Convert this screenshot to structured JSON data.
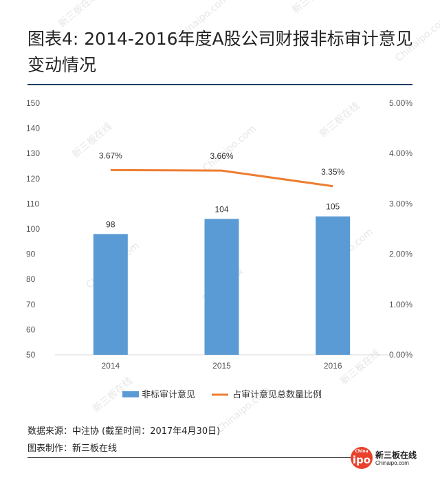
{
  "title": "图表4: 2014-2016年度A股公司财报非标审计意见变动情况",
  "footer": {
    "source": "数据来源：中注协 (截至时间：2017年4月30日)",
    "maker": "图表制作：新三板在线"
  },
  "logo": {
    "badge_small": "China",
    "badge_big": "ipo",
    "name": "新三板在线",
    "url": "Chinaipo.com"
  },
  "watermark": {
    "cn": "新三板在线",
    "en": "Chinaipo.com"
  },
  "colors": {
    "bar": "#5b9bd5",
    "line": "#ed7d31",
    "grid": "#d9d9d9",
    "title_rule": "#1f3b64"
  },
  "chart_data": {
    "type": "bar",
    "title": "",
    "categories": [
      "2014",
      "2015",
      "2016"
    ],
    "series": [
      {
        "name": "非标审计意见",
        "type": "bar",
        "axis": "left",
        "values": [
          98,
          104,
          105
        ],
        "labels": [
          "98",
          "104",
          "105"
        ]
      },
      {
        "name": "占审计意见总数量比例",
        "type": "line",
        "axis": "right",
        "values": [
          3.67,
          3.66,
          3.35
        ],
        "labels": [
          "3.67%",
          "3.66%",
          "3.35%"
        ]
      }
    ],
    "left_axis": {
      "min": 50,
      "max": 150,
      "step": 10,
      "ticks": [
        "50",
        "60",
        "70",
        "80",
        "90",
        "100",
        "110",
        "120",
        "130",
        "140",
        "150"
      ]
    },
    "right_axis": {
      "min": 0,
      "max": 5,
      "step": 1,
      "ticks": [
        "0.00%",
        "1.00%",
        "2.00%",
        "3.00%",
        "4.00%",
        "5.00%"
      ]
    },
    "legend_position": "bottom",
    "grid": false
  }
}
